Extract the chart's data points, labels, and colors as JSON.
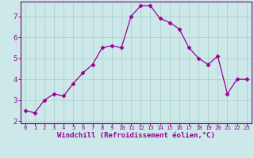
{
  "x": [
    0,
    1,
    2,
    3,
    4,
    5,
    6,
    7,
    8,
    9,
    10,
    11,
    12,
    13,
    14,
    15,
    16,
    17,
    18,
    19,
    20,
    21,
    22,
    23
  ],
  "y": [
    2.5,
    2.4,
    3.0,
    3.3,
    3.2,
    3.8,
    4.3,
    4.7,
    5.5,
    5.6,
    5.5,
    7.0,
    7.5,
    7.5,
    6.9,
    6.7,
    6.4,
    5.5,
    5.0,
    4.7,
    5.1,
    3.3,
    4.0,
    4.0
  ],
  "xlim": [
    -0.5,
    23.5
  ],
  "ylim": [
    1.9,
    7.7
  ],
  "yticks": [
    2,
    3,
    4,
    5,
    6,
    7
  ],
  "xticks": [
    0,
    1,
    2,
    3,
    4,
    5,
    6,
    7,
    8,
    9,
    10,
    11,
    12,
    13,
    14,
    15,
    16,
    17,
    18,
    19,
    20,
    21,
    22,
    23
  ],
  "xlabel": "Windchill (Refroidissement éolien,°C)",
  "line_color": "#990099",
  "marker": "D",
  "marker_size": 2.5,
  "bg_color": "#cce8e8",
  "grid_color": "#aacccc",
  "tick_label_color": "#990099",
  "xlabel_color": "#990099",
  "spine_color": "#7a007a",
  "xlabel_fontsize": 6.5,
  "xtick_fontsize": 5.2,
  "ytick_fontsize": 6.5
}
